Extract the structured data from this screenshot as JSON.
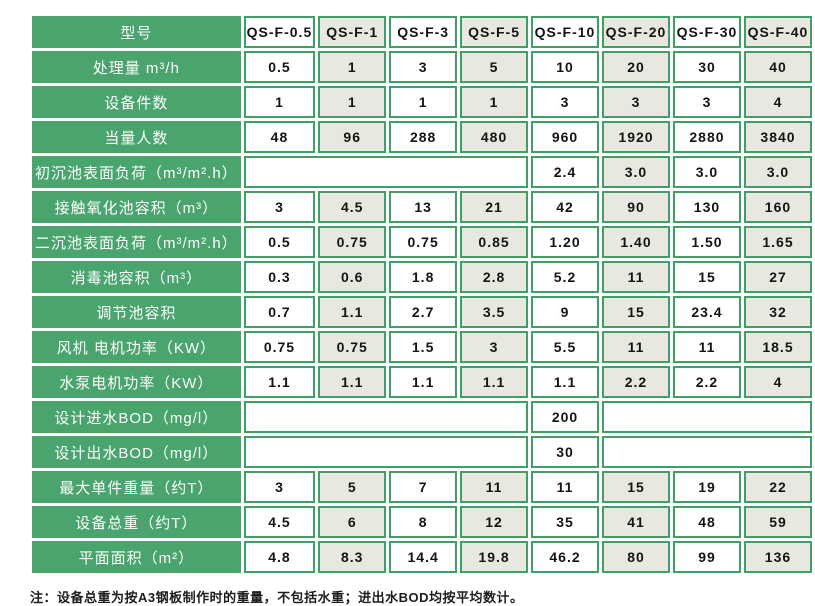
{
  "colors": {
    "header_green": "#4aa46e",
    "border_green": "#3f9f67",
    "cell_alt_gray": "#e9e8e0",
    "cell_white": "#ffffff",
    "text_dark": "#141414",
    "text_white": "#ffffff"
  },
  "table": {
    "header": {
      "label": "型号",
      "models": [
        "QS-F-0.5",
        "QS-F-1",
        "QS-F-3",
        "QS-F-5",
        "QS-F-10",
        "QS-F-20",
        "QS-F-30",
        "QS-F-40"
      ]
    },
    "rows": [
      {
        "label": "处理量 m³/h",
        "values": [
          "0.5",
          "1",
          "3",
          "5",
          "10",
          "20",
          "30",
          "40"
        ]
      },
      {
        "label": "设备件数",
        "values": [
          "1",
          "1",
          "1",
          "1",
          "3",
          "3",
          "3",
          "4"
        ]
      },
      {
        "label": "当量人数",
        "values": [
          "48",
          "96",
          "288",
          "480",
          "960",
          "1920",
          "2880",
          "3840"
        ]
      },
      {
        "label": "初沉池表面负荷（m³/m².h）",
        "merged_left_span": 4,
        "values": [
          "2.4",
          "3.0",
          "3.0",
          "3.0"
        ]
      },
      {
        "label": "接触氧化池容积（m³）",
        "values": [
          "3",
          "4.5",
          "13",
          "21",
          "42",
          "90",
          "130",
          "160"
        ]
      },
      {
        "label": "二沉池表面负荷（m³/m².h）",
        "values": [
          "0.5",
          "0.75",
          "0.75",
          "0.85",
          "1.20",
          "1.40",
          "1.50",
          "1.65"
        ]
      },
      {
        "label": "消毒池容积（m³）",
        "values": [
          "0.3",
          "0.6",
          "1.8",
          "2.8",
          "5.2",
          "11",
          "15",
          "27"
        ]
      },
      {
        "label": "调节池容积",
        "values": [
          "0.7",
          "1.1",
          "2.7",
          "3.5",
          "9",
          "15",
          "23.4",
          "32"
        ]
      },
      {
        "label": "风机 电机功率（KW）",
        "values": [
          "0.75",
          "0.75",
          "1.5",
          "3",
          "5.5",
          "11",
          "11",
          "18.5"
        ]
      },
      {
        "label": "水泵电机功率（KW）",
        "values": [
          "1.1",
          "1.1",
          "1.1",
          "1.1",
          "1.1",
          "2.2",
          "2.2",
          "4"
        ]
      },
      {
        "label": "设计进水BOD（mg/l）",
        "merged_left_span": 4,
        "value": "200",
        "merged_right_span": 3
      },
      {
        "label": "设计出水BOD（mg/l）",
        "merged_left_span": 4,
        "value": "30",
        "merged_right_span": 3
      },
      {
        "label": "最大单件重量（约T）",
        "values": [
          "3",
          "5",
          "7",
          "11",
          "11",
          "15",
          "19",
          "22"
        ]
      },
      {
        "label": "设备总重（约T）",
        "values": [
          "4.5",
          "6",
          "8",
          "12",
          "35",
          "41",
          "48",
          "59"
        ]
      },
      {
        "label": "平面面积（m²）",
        "values": [
          "4.8",
          "8.3",
          "14.4",
          "19.8",
          "46.2",
          "80",
          "99",
          "136"
        ]
      }
    ]
  },
  "note": "注：设备总重为按A3钢板制作时的重量，不包括水重；进出水BOD均按平均数计。"
}
